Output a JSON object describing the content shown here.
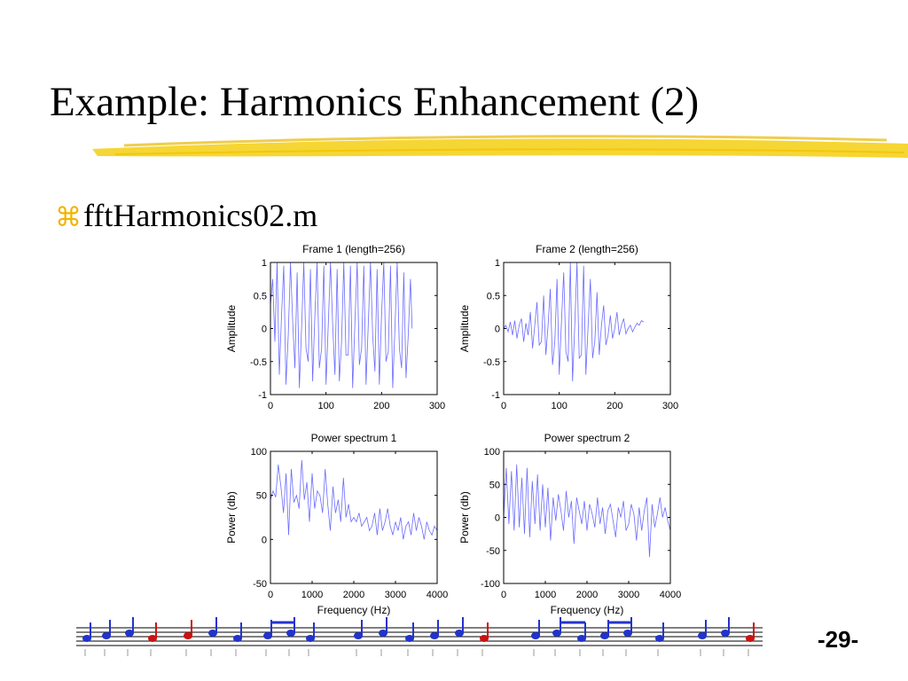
{
  "slide": {
    "title": "Example: Harmonics Enhancement (2)",
    "bullet_glyph": "⌘",
    "bullet_text": "fftHarmonics02.m",
    "page_number": "-29-"
  },
  "colors": {
    "highlight": "#f5d21e",
    "trace": "#6b6bff",
    "bullet_glyph": "#f0b400",
    "note_blue": "#2233cc",
    "note_red": "#cc1111"
  },
  "chart_data": [
    {
      "type": "line",
      "title": "Frame 1 (length=256)",
      "xlabel": "",
      "ylabel": "Amplitude",
      "xlim": [
        0,
        300
      ],
      "ylim": [
        -1,
        1
      ],
      "xticks": [
        0,
        100,
        200,
        300
      ],
      "yticks": [
        -1,
        -0.5,
        0,
        0.5,
        1
      ],
      "xtick_labels": [
        "0",
        "100",
        "200",
        "300"
      ],
      "ytick_labels": [
        "-1",
        "-0.5",
        "0",
        "0.5",
        "1"
      ],
      "grid": false,
      "series": [
        {
          "x": [
            0,
            4,
            8,
            12,
            16,
            20,
            24,
            28,
            32,
            36,
            40,
            44,
            48,
            52,
            56,
            60,
            64,
            68,
            72,
            76,
            80,
            84,
            88,
            92,
            96,
            100,
            104,
            108,
            112,
            116,
            120,
            124,
            128,
            132,
            136,
            140,
            144,
            148,
            152,
            156,
            160,
            164,
            168,
            172,
            176,
            180,
            184,
            188,
            192,
            196,
            200,
            204,
            208,
            212,
            216,
            220,
            224,
            228,
            232,
            236,
            240,
            244,
            248,
            252,
            255
          ],
          "y": [
            0.35,
            0.75,
            -0.2,
            1.0,
            -0.7,
            0.2,
            0.95,
            -0.85,
            -0.1,
            1.0,
            0.1,
            -0.6,
            0.85,
            -0.9,
            0.0,
            1.0,
            -0.3,
            -0.5,
            0.9,
            -0.8,
            0.2,
            1.0,
            -0.6,
            -0.3,
            0.95,
            -0.85,
            0.05,
            1.0,
            0.05,
            -0.7,
            0.9,
            -0.8,
            -0.2,
            1.0,
            -0.4,
            -0.4,
            0.95,
            -0.9,
            0.1,
            1.0,
            -0.55,
            -0.3,
            0.95,
            -0.85,
            0.05,
            1.0,
            -0.1,
            -0.65,
            0.9,
            -0.85,
            0.2,
            1.0,
            -0.5,
            -0.35,
            0.95,
            -0.9,
            0.0,
            1.0,
            -0.3,
            -0.6,
            0.85,
            -0.75,
            -0.1,
            0.75,
            0.0
          ]
        }
      ]
    },
    {
      "type": "line",
      "title": "Frame 2 (length=256)",
      "xlabel": "",
      "ylabel": "Amplitude",
      "xlim": [
        0,
        300
      ],
      "ylim": [
        -1,
        1
      ],
      "xticks": [
        0,
        100,
        200,
        300
      ],
      "yticks": [
        -1,
        -0.5,
        0,
        0.5,
        1
      ],
      "xtick_labels": [
        "0",
        "100",
        "200",
        "300"
      ],
      "ytick_labels": [
        "-1",
        "-0.5",
        "0",
        "0.5",
        "1"
      ],
      "grid": false,
      "series": [
        {
          "x": [
            0,
            4,
            8,
            12,
            16,
            20,
            24,
            28,
            32,
            36,
            40,
            44,
            48,
            52,
            56,
            60,
            64,
            68,
            72,
            76,
            80,
            84,
            88,
            92,
            96,
            100,
            104,
            108,
            112,
            116,
            120,
            124,
            128,
            132,
            136,
            140,
            144,
            148,
            152,
            156,
            160,
            164,
            168,
            172,
            176,
            180,
            184,
            188,
            192,
            196,
            200,
            204,
            208,
            212,
            216,
            220,
            224,
            228,
            232,
            236,
            240,
            244,
            248,
            252
          ],
          "y": [
            0.0,
            0.05,
            -0.05,
            0.1,
            -0.1,
            0.12,
            -0.15,
            0.05,
            0.15,
            -0.2,
            0.08,
            -0.1,
            0.25,
            -0.3,
            0.05,
            0.4,
            -0.25,
            -0.2,
            0.5,
            -0.4,
            0.05,
            0.6,
            -0.55,
            -0.2,
            0.75,
            -0.7,
            0.1,
            0.85,
            -0.35,
            -0.5,
            1.0,
            -0.8,
            0.05,
            1.0,
            -0.45,
            -0.4,
            0.95,
            -0.7,
            0.05,
            0.75,
            -0.45,
            -0.2,
            0.55,
            -0.4,
            0.05,
            0.35,
            -0.25,
            -0.1,
            0.2,
            -0.15,
            0.0,
            0.25,
            -0.1,
            0.05,
            0.15,
            -0.08,
            0.0,
            0.05,
            -0.05,
            0.02,
            0.08,
            0.05,
            0.12,
            0.1
          ]
        }
      ]
    },
    {
      "type": "line",
      "title": "Power spectrum 1",
      "xlabel": "Frequency (Hz)",
      "ylabel": "Power (db)",
      "xlim": [
        0,
        4000
      ],
      "ylim": [
        -50,
        100
      ],
      "xticks": [
        0,
        1000,
        2000,
        3000,
        4000
      ],
      "yticks": [
        -50,
        0,
        50,
        100
      ],
      "xtick_labels": [
        "0",
        "1000",
        "2000",
        "3000",
        "4000"
      ],
      "ytick_labels": [
        "-50",
        "0",
        "50",
        "100"
      ],
      "grid": false,
      "series": [
        {
          "x": [
            0,
            62,
            125,
            187,
            250,
            312,
            375,
            437,
            500,
            562,
            625,
            687,
            750,
            812,
            875,
            937,
            1000,
            1062,
            1125,
            1187,
            1250,
            1312,
            1375,
            1437,
            1500,
            1562,
            1625,
            1687,
            1750,
            1812,
            1875,
            1937,
            2000,
            2062,
            2125,
            2187,
            2250,
            2312,
            2375,
            2437,
            2500,
            2562,
            2625,
            2687,
            2750,
            2812,
            2875,
            2937,
            3000,
            3062,
            3125,
            3187,
            3250,
            3312,
            3375,
            3437,
            3500,
            3562,
            3625,
            3687,
            3750,
            3812,
            3875,
            3937,
            4000
          ],
          "y": [
            45,
            55,
            48,
            85,
            60,
            30,
            75,
            5,
            80,
            42,
            50,
            35,
            90,
            45,
            65,
            20,
            75,
            35,
            55,
            50,
            30,
            80,
            40,
            10,
            60,
            30,
            45,
            20,
            70,
            25,
            40,
            20,
            25,
            20,
            30,
            15,
            20,
            25,
            10,
            15,
            30,
            5,
            35,
            10,
            20,
            35,
            15,
            5,
            20,
            10,
            25,
            0,
            15,
            20,
            5,
            30,
            10,
            25,
            15,
            0,
            20,
            10,
            5,
            15,
            10
          ]
        }
      ]
    },
    {
      "type": "line",
      "title": "Power spectrum 2",
      "xlabel": "Frequency (Hz)",
      "ylabel": "Power (db)",
      "xlim": [
        0,
        4000
      ],
      "ylim": [
        -100,
        100
      ],
      "xticks": [
        0,
        1000,
        2000,
        3000,
        4000
      ],
      "yticks": [
        -100,
        -50,
        0,
        50,
        100
      ],
      "xtick_labels": [
        "0",
        "1000",
        "2000",
        "3000",
        "4000"
      ],
      "ytick_labels": [
        "-100",
        "-50",
        "0",
        "50",
        "100"
      ],
      "grid": false,
      "series": [
        {
          "x": [
            0,
            62,
            125,
            187,
            250,
            312,
            375,
            437,
            500,
            562,
            625,
            687,
            750,
            812,
            875,
            937,
            1000,
            1062,
            1125,
            1187,
            1250,
            1312,
            1375,
            1437,
            1500,
            1562,
            1625,
            1687,
            1750,
            1812,
            1875,
            1937,
            2000,
            2062,
            2125,
            2187,
            2250,
            2312,
            2375,
            2437,
            2500,
            2562,
            2625,
            2687,
            2750,
            2812,
            2875,
            2937,
            3000,
            3062,
            3125,
            3187,
            3250,
            3312,
            3375,
            3437,
            3500,
            3562,
            3625,
            3687,
            3750,
            3812,
            3875,
            3937,
            4000
          ],
          "y": [
            0,
            75,
            -10,
            70,
            -20,
            80,
            -15,
            60,
            -25,
            75,
            -30,
            55,
            -10,
            65,
            -20,
            50,
            -15,
            45,
            -35,
            30,
            -5,
            35,
            10,
            -20,
            40,
            0,
            25,
            -40,
            30,
            10,
            -10,
            25,
            -20,
            20,
            5,
            -15,
            30,
            -10,
            15,
            -25,
            10,
            20,
            -5,
            -30,
            15,
            0,
            25,
            -20,
            -10,
            20,
            5,
            -35,
            15,
            -20,
            10,
            30,
            -60,
            20,
            -15,
            5,
            30,
            0,
            15,
            -5,
            -20
          ]
        }
      ]
    }
  ]
}
